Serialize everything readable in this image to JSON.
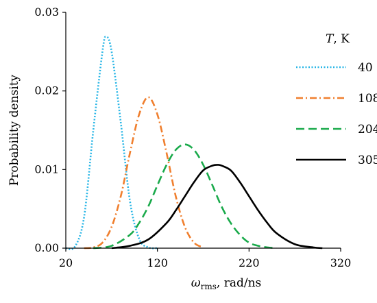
{
  "chart_data": {
    "type": "line",
    "xlabel_symbol": "ω",
    "xlabel_sub": "rms",
    "xlabel_unit": ", rad/ns",
    "ylabel": "Probability density",
    "xlim": [
      20,
      320
    ],
    "ylim": [
      0,
      0.03
    ],
    "xticks": [
      20,
      120,
      220,
      320
    ],
    "xtick_labels": [
      "20",
      "120",
      "220",
      "320"
    ],
    "yticks": [
      0,
      0.01,
      0.02,
      0.03
    ],
    "ytick_labels": [
      "0.00",
      "0.01",
      "0.02",
      "0.03"
    ],
    "grid": false,
    "legend_position": "top-right",
    "legend_title_symbol": "T",
    "legend_title_unit": ", K",
    "series": [
      {
        "name": "40",
        "color": "#29b6e6",
        "dash": "dotted",
        "x": [
          20,
          30,
          40,
          50,
          60,
          64,
          70,
          80,
          90,
          100,
          110,
          120
        ],
        "y": [
          0.0,
          0.0002,
          0.004,
          0.015,
          0.025,
          0.0269,
          0.025,
          0.016,
          0.006,
          0.0012,
          0.0001,
          0.0
        ]
      },
      {
        "name": "108",
        "color": "#f07f2e",
        "dash": "dashdot",
        "x": [
          40,
          50,
          60,
          70,
          80,
          90,
          100,
          110,
          120,
          130,
          140,
          150,
          160,
          170
        ],
        "y": [
          0.0,
          0.0001,
          0.0007,
          0.0027,
          0.0066,
          0.0121,
          0.017,
          0.0192,
          0.017,
          0.0121,
          0.0066,
          0.0027,
          0.0007,
          0.0001
        ]
      },
      {
        "name": "204",
        "color": "#1aaa4b",
        "dash": "dashed",
        "x": [
          50,
          70,
          90,
          100,
          110,
          120,
          130,
          140,
          150,
          160,
          170,
          180,
          190,
          200,
          210,
          220,
          230,
          240,
          250
        ],
        "y": [
          0.0,
          0.0003,
          0.0017,
          0.0032,
          0.0053,
          0.008,
          0.0106,
          0.0125,
          0.0132,
          0.0125,
          0.0106,
          0.008,
          0.0053,
          0.0032,
          0.0017,
          0.0007,
          0.0003,
          0.0001,
          0.0
        ]
      },
      {
        "name": "305",
        "color": "#000000",
        "dash": "solid",
        "x": [
          70,
          90,
          110,
          130,
          140,
          150,
          160,
          170,
          180,
          186,
          190,
          200,
          210,
          220,
          230,
          240,
          250,
          270,
          290,
          300
        ],
        "y": [
          0.0,
          0.0003,
          0.0011,
          0.0032,
          0.0048,
          0.0066,
          0.0084,
          0.0099,
          0.0105,
          0.0106,
          0.0105,
          0.0099,
          0.0084,
          0.0066,
          0.0048,
          0.0032,
          0.0019,
          0.0005,
          0.0001,
          0.0
        ]
      }
    ]
  }
}
